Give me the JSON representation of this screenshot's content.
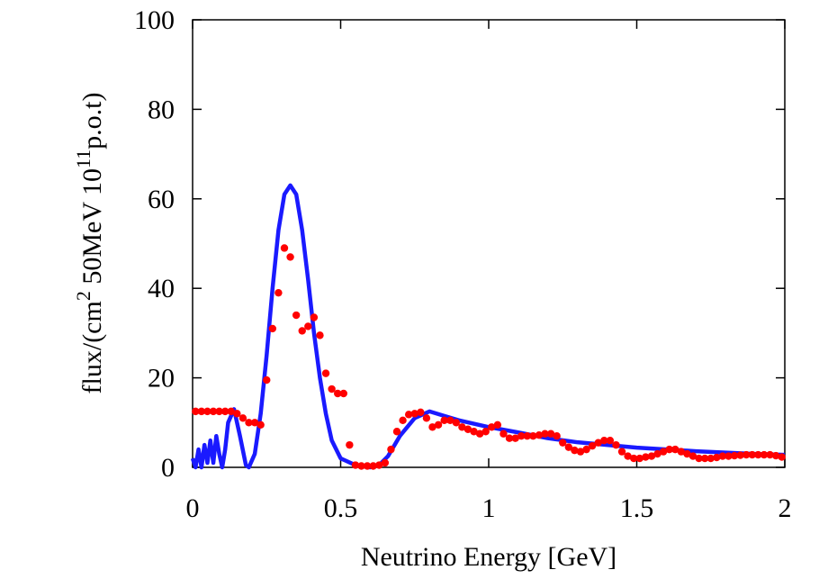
{
  "chart_data": {
    "type": "scatter",
    "xlabel": "Neutrino Energy [GeV]",
    "ylabel": [
      "flux/(cm",
      "2",
      " 50MeV 10",
      "11",
      "p.o.t)"
    ],
    "xlim": [
      0,
      2
    ],
    "ylim": [
      0,
      100
    ],
    "xticks": [
      0,
      0.5,
      1,
      1.5,
      2
    ],
    "yticks": [
      0,
      20,
      40,
      60,
      80,
      100
    ],
    "grid": false,
    "series": [
      {
        "type": "line",
        "color": "#1a1aff",
        "x": [
          0,
          0.01,
          0.02,
          0.03,
          0.04,
          0.05,
          0.06,
          0.07,
          0.08,
          0.09,
          0.1,
          0.11,
          0.12,
          0.14,
          0.16,
          0.18,
          0.19,
          0.21,
          0.23,
          0.25,
          0.27,
          0.29,
          0.31,
          0.33,
          0.35,
          0.37,
          0.39,
          0.41,
          0.43,
          0.45,
          0.47,
          0.5,
          0.55,
          0.6,
          0.63,
          0.66,
          0.7,
          0.75,
          0.8,
          0.85,
          0.9,
          1.0,
          1.1,
          1.2,
          1.3,
          1.4,
          1.5,
          1.6,
          1.7,
          1.8,
          1.9,
          2.0
        ],
        "values": [
          2,
          0,
          4,
          0,
          5,
          1,
          6,
          1,
          7,
          3,
          0,
          4,
          10,
          13,
          7,
          0.5,
          0,
          3,
          12,
          25,
          40,
          53,
          61,
          63,
          61,
          53,
          42,
          30,
          20,
          12,
          6,
          2,
          0.5,
          0,
          0.5,
          2.5,
          7,
          11,
          12.5,
          11.5,
          10.5,
          9,
          7.8,
          6.5,
          5.6,
          5,
          4.4,
          4,
          3.6,
          3.3,
          3,
          2.8
        ]
      },
      {
        "type": "scatter",
        "color": "#ff0000",
        "x": [
          0.01,
          0.03,
          0.05,
          0.07,
          0.09,
          0.11,
          0.13,
          0.15,
          0.17,
          0.19,
          0.21,
          0.23,
          0.25,
          0.27,
          0.29,
          0.31,
          0.33,
          0.35,
          0.37,
          0.39,
          0.41,
          0.43,
          0.45,
          0.47,
          0.49,
          0.51,
          0.53,
          0.55,
          0.57,
          0.59,
          0.61,
          0.63,
          0.65,
          0.67,
          0.69,
          0.71,
          0.73,
          0.75,
          0.77,
          0.79,
          0.81,
          0.83,
          0.85,
          0.87,
          0.89,
          0.91,
          0.93,
          0.95,
          0.97,
          0.99,
          1.01,
          1.03,
          1.05,
          1.07,
          1.09,
          1.11,
          1.13,
          1.15,
          1.17,
          1.19,
          1.21,
          1.23,
          1.25,
          1.27,
          1.29,
          1.31,
          1.33,
          1.35,
          1.37,
          1.39,
          1.41,
          1.43,
          1.45,
          1.47,
          1.49,
          1.51,
          1.53,
          1.55,
          1.57,
          1.59,
          1.61,
          1.63,
          1.65,
          1.67,
          1.69,
          1.71,
          1.73,
          1.75,
          1.77,
          1.79,
          1.81,
          1.83,
          1.85,
          1.87,
          1.89,
          1.91,
          1.93,
          1.95,
          1.97,
          1.99
        ],
        "values": [
          12.5,
          12.5,
          12.5,
          12.5,
          12.5,
          12.5,
          12.5,
          12,
          11,
          10,
          10,
          9.5,
          19.5,
          31,
          39,
          49,
          47,
          34,
          30.5,
          31.5,
          33.5,
          29.5,
          21,
          17.5,
          16.5,
          16.5,
          5,
          0.5,
          0.3,
          0.3,
          0.3,
          0.5,
          1,
          4,
          8,
          10.5,
          11.8,
          12,
          12.3,
          11,
          9,
          9.5,
          10.5,
          10.5,
          10,
          9,
          8.5,
          8,
          7.5,
          8,
          9,
          9.5,
          7.5,
          6.5,
          6.5,
          7,
          7,
          7,
          7.2,
          7.5,
          7.5,
          7,
          5.5,
          4.5,
          3.8,
          3.5,
          4,
          4.8,
          5.5,
          6,
          6,
          5,
          3.5,
          2.5,
          2,
          2,
          2.3,
          2.5,
          3,
          3.5,
          4,
          4,
          3.5,
          3,
          2.5,
          2,
          2,
          2,
          2.2,
          2.5,
          2.5,
          2.6,
          2.7,
          2.8,
          2.8,
          2.8,
          2.8,
          2.8,
          2.6,
          2.3
        ]
      }
    ]
  }
}
